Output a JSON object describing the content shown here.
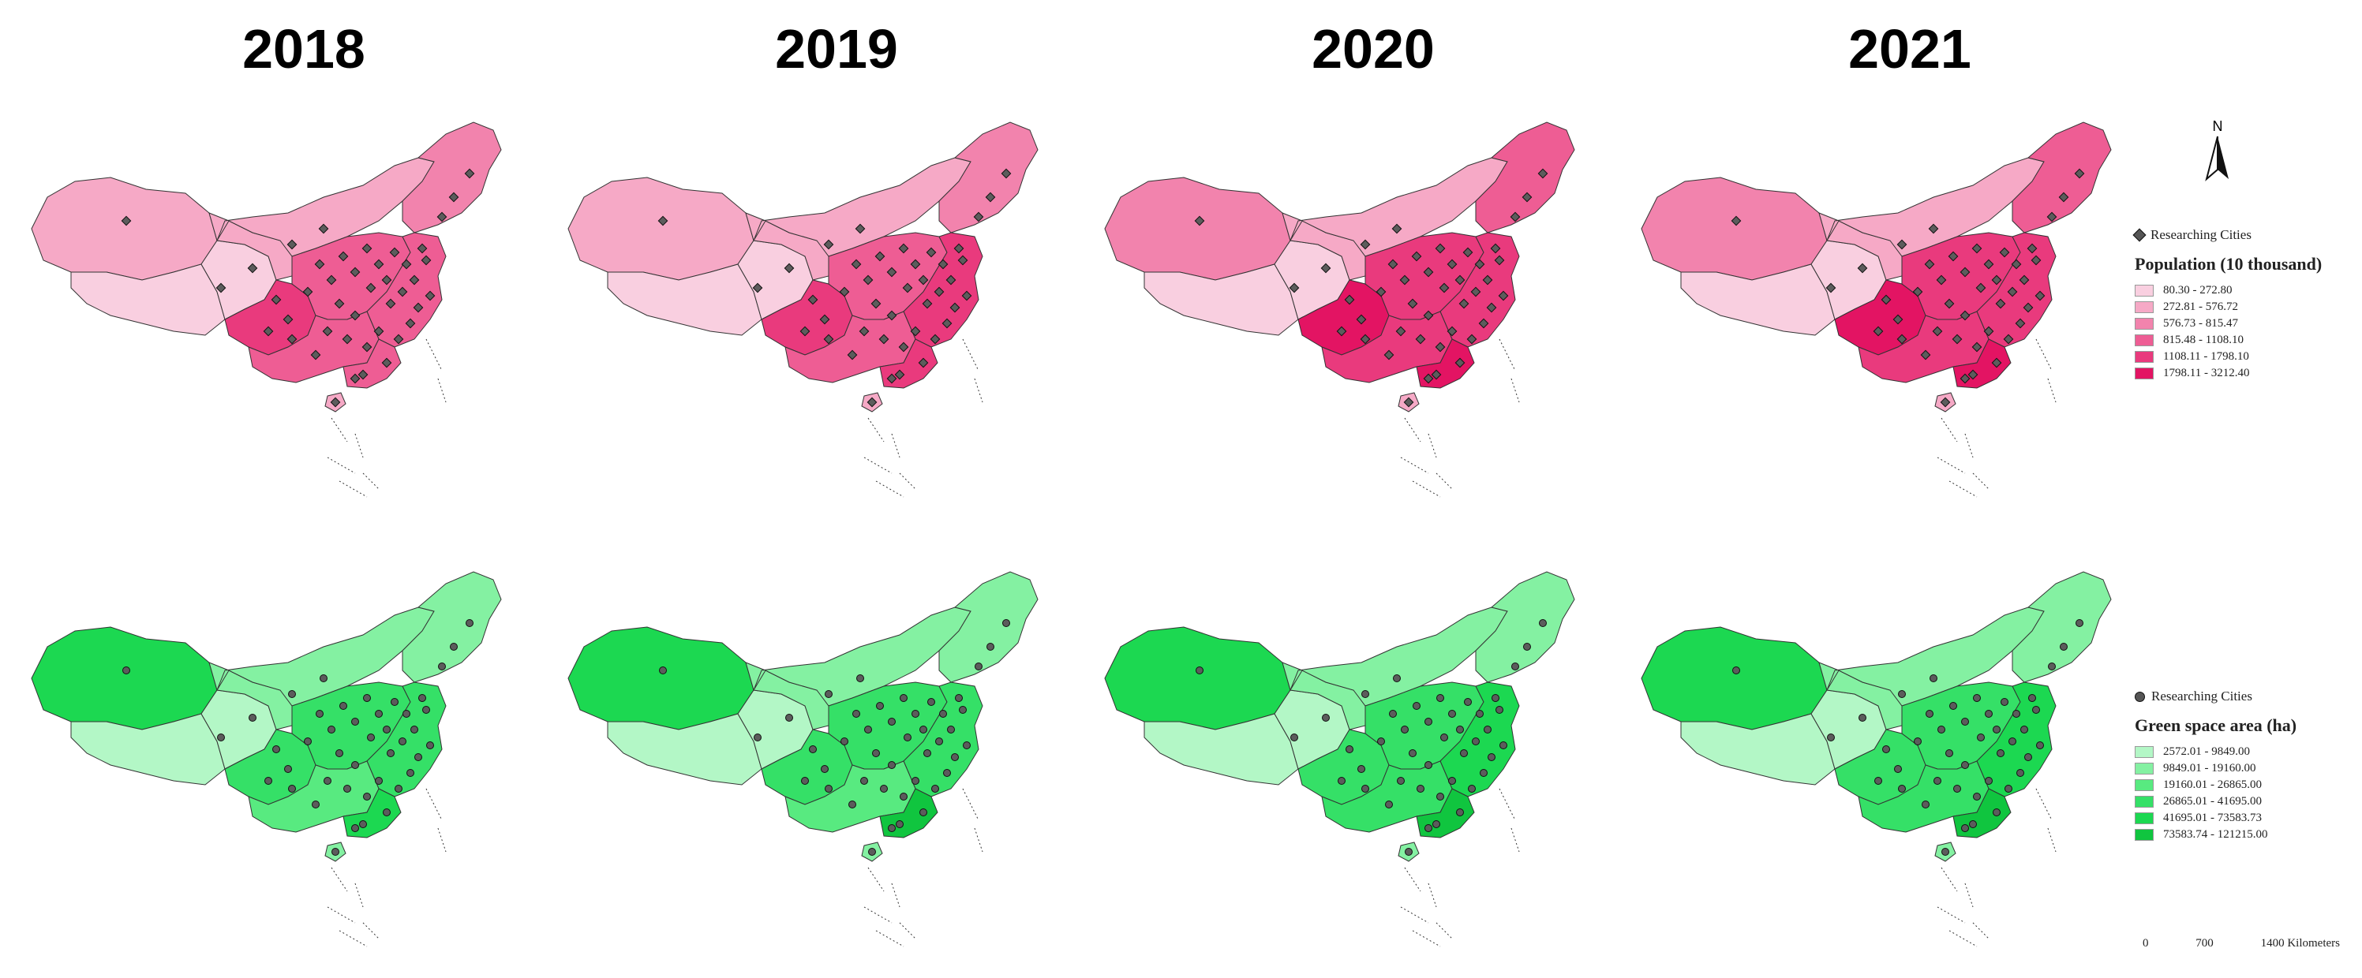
{
  "years": [
    "2018",
    "2019",
    "2020",
    "2021"
  ],
  "colors": {
    "population": [
      "#f9cfe0",
      "#f6a9c6",
      "#f283ad",
      "#ee5d94",
      "#e93a7d",
      "#e31463"
    ],
    "green": [
      "#b3f7c6",
      "#84f1a2",
      "#58ea80",
      "#35e067",
      "#1cd851",
      "#10c53f"
    ],
    "point": "#5c5c5c",
    "outline": "#333333"
  },
  "maps": {
    "population": [
      {
        "year": "2018",
        "levels": {
          "xinjiang": 1,
          "tibet": 0,
          "qinghai": 0,
          "gansu": 1,
          "inner_mongolia": 1,
          "northeast": 2,
          "sichuan": 4,
          "central": 3,
          "east": 3,
          "south": 3,
          "guangdong": 3,
          "hainan": 1
        }
      },
      {
        "year": "2019",
        "levels": {
          "xinjiang": 1,
          "tibet": 0,
          "qinghai": 0,
          "gansu": 1,
          "inner_mongolia": 1,
          "northeast": 2,
          "sichuan": 4,
          "central": 3,
          "east": 4,
          "south": 3,
          "guangdong": 4,
          "hainan": 1
        }
      },
      {
        "year": "2020",
        "levels": {
          "xinjiang": 2,
          "tibet": 0,
          "qinghai": 0,
          "gansu": 1,
          "inner_mongolia": 1,
          "northeast": 3,
          "sichuan": 5,
          "central": 4,
          "east": 4,
          "south": 4,
          "guangdong": 5,
          "hainan": 1
        }
      },
      {
        "year": "2021",
        "levels": {
          "xinjiang": 2,
          "tibet": 0,
          "qinghai": 0,
          "gansu": 1,
          "inner_mongolia": 1,
          "northeast": 3,
          "sichuan": 5,
          "central": 4,
          "east": 4,
          "south": 4,
          "guangdong": 5,
          "hainan": 1
        }
      }
    ],
    "green": [
      {
        "year": "2018",
        "levels": {
          "xinjiang": 4,
          "tibet": 0,
          "qinghai": 0,
          "gansu": 1,
          "inner_mongolia": 1,
          "northeast": 1,
          "sichuan": 3,
          "central": 3,
          "east": 3,
          "south": 2,
          "guangdong": 4,
          "hainan": 1
        }
      },
      {
        "year": "2019",
        "levels": {
          "xinjiang": 4,
          "tibet": 0,
          "qinghai": 0,
          "gansu": 1,
          "inner_mongolia": 1,
          "northeast": 1,
          "sichuan": 3,
          "central": 3,
          "east": 3,
          "south": 2,
          "guangdong": 5,
          "hainan": 1
        }
      },
      {
        "year": "2020",
        "levels": {
          "xinjiang": 4,
          "tibet": 0,
          "qinghai": 0,
          "gansu": 1,
          "inner_mongolia": 1,
          "northeast": 1,
          "sichuan": 3,
          "central": 3,
          "east": 4,
          "south": 3,
          "guangdong": 5,
          "hainan": 1
        }
      },
      {
        "year": "2021",
        "levels": {
          "xinjiang": 4,
          "tibet": 0,
          "qinghai": 0,
          "gansu": 1,
          "inner_mongolia": 1,
          "northeast": 1,
          "sichuan": 3,
          "central": 3,
          "east": 4,
          "south": 3,
          "guangdong": 5,
          "hainan": 1
        }
      }
    ]
  },
  "legend_population": {
    "points_label": "Researching Cities",
    "title": "Population (10 thousand)",
    "classes": [
      "80.30 - 272.80",
      "272.81 - 576.72",
      "576.73 - 815.47",
      "815.48 - 1108.10",
      "1108.11 - 1798.10",
      "1798.11 - 3212.40"
    ]
  },
  "legend_green": {
    "points_label": "Researching Cities",
    "title": "Green space area (ha)",
    "classes": [
      "2572.01 - 9849.00",
      "9849.01 - 19160.00",
      "19160.01 - 26865.00",
      "26865.01 - 41695.00",
      "41695.01 - 73583.73",
      "73583.74 - 121215.00"
    ]
  },
  "north": "N",
  "scale": {
    "labels": [
      "0",
      "700",
      "1400 Kilometers"
    ]
  }
}
